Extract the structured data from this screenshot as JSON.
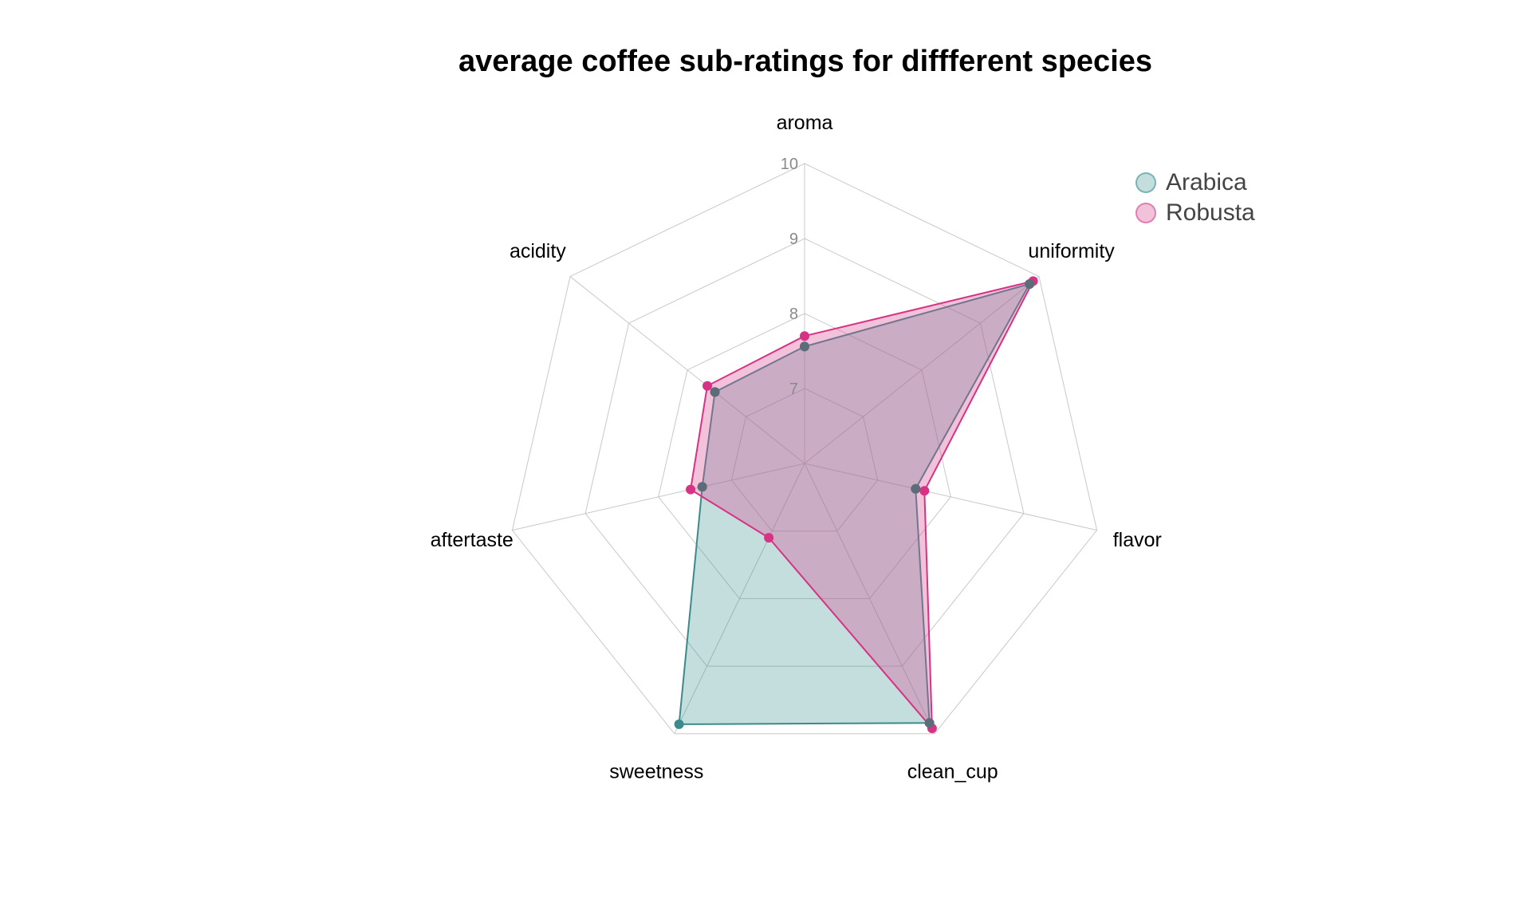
{
  "chart_data": {
    "type": "radar",
    "title": "average coffee sub-ratings for diffferent species",
    "axes": [
      "aroma",
      "uniformity",
      "flavor",
      "clean_cup",
      "sweetness",
      "aftertaste",
      "acidity"
    ],
    "radial_range": [
      6,
      10
    ],
    "ticks": [
      7,
      8,
      9,
      10
    ],
    "grid": true,
    "legend_position": "top-right",
    "series": [
      {
        "name": "Arabica",
        "color": "#3d8a8a",
        "fill": "rgba(70,150,150,0.32)",
        "values": [
          7.56,
          9.84,
          7.52,
          9.84,
          9.86,
          7.4,
          7.53
        ]
      },
      {
        "name": "Robusta",
        "color": "#d63384",
        "fill": "rgba(214,80,150,0.35)",
        "values": [
          7.7,
          9.9,
          7.64,
          9.92,
          7.1,
          7.56,
          7.66
        ]
      }
    ]
  }
}
